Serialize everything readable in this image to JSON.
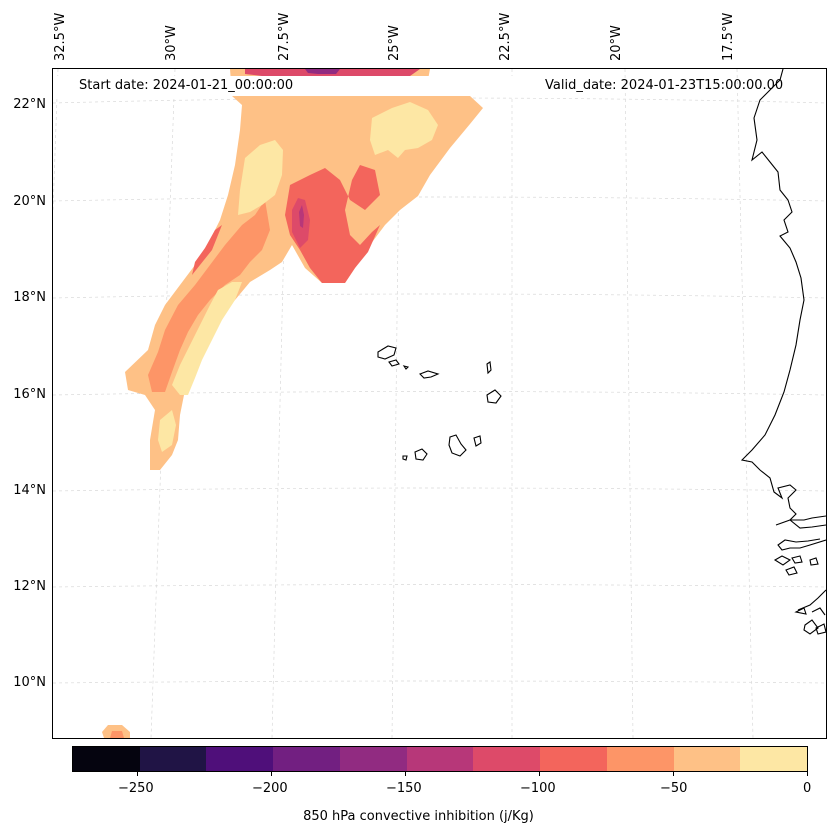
{
  "header": {
    "start_date": "Start date: 2024-01-21_00:00:00",
    "valid_date": "Valid_date: 2024-01-23T15:00:00.00"
  },
  "map": {
    "longitude_labels": [
      "32.5°W",
      "30°W",
      "27.5°W",
      "25°W",
      "22.5°W",
      "20°W",
      "17.5°W"
    ],
    "latitude_labels": [
      "22°N",
      "20°N",
      "18°N",
      "16°N",
      "14°N",
      "12°N",
      "10°N"
    ],
    "field": "850 hPa convective inhibition",
    "gridlines": true,
    "gridline_color": "#d9d9d9",
    "coastline_color": "#000000"
  },
  "colorbar": {
    "label": "850 hPa convective inhibition (j/Kg)",
    "tick_labels": [
      "−250",
      "−200",
      "−150",
      "−100",
      "−50",
      "0"
    ],
    "levels": [
      -275,
      -250,
      -225,
      -200,
      -175,
      -150,
      -125,
      -100,
      -75,
      -50,
      -25,
      0
    ],
    "colors": [
      "#05040f",
      "#201445",
      "#4f0f7a",
      "#721f81",
      "#912b81",
      "#b73779",
      "#dd4a69",
      "#f3655c",
      "#fd9567",
      "#fec186",
      "#fde7a4"
    ]
  }
}
